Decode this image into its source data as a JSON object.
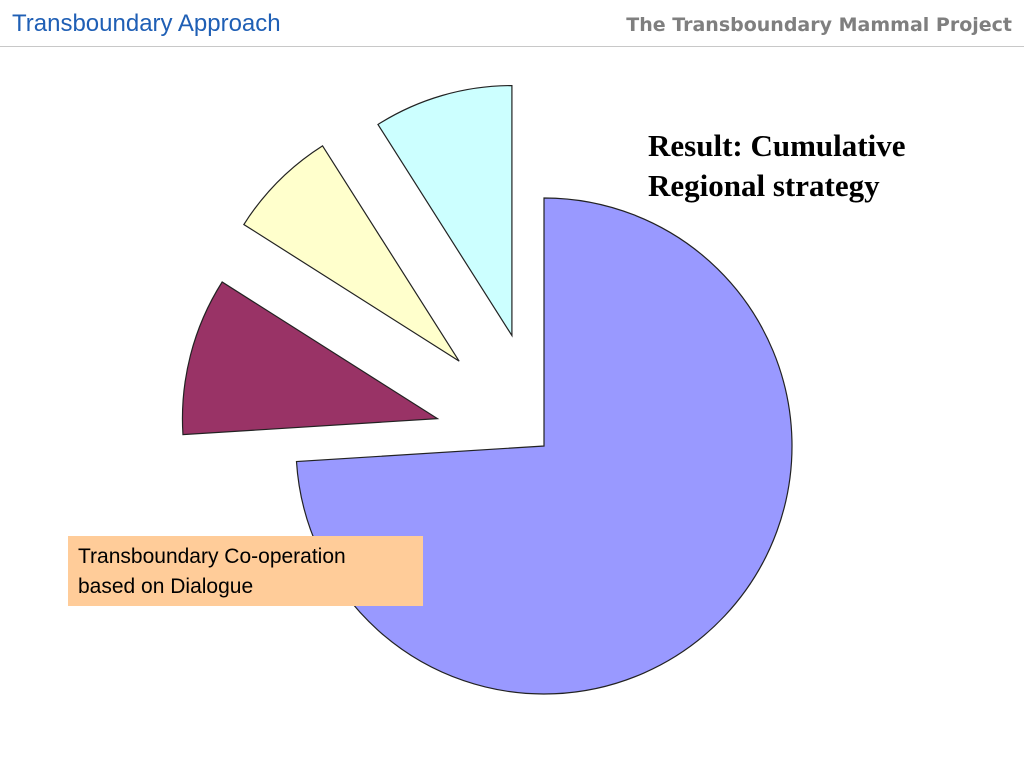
{
  "header": {
    "title": "Transboundary Approach",
    "project": "The Transboundary Mammal Project"
  },
  "result": {
    "line1": "Result: Cumulative",
    "line2": "Regional strategy"
  },
  "callout": {
    "line1": "Transboundary Co-operation",
    "line2": "based on Dialogue"
  },
  "chart_data": {
    "type": "pie",
    "exploded": true,
    "slices": [
      {
        "value": 74,
        "color": "#9999ff"
      },
      {
        "value": 10,
        "color": "#993366"
      },
      {
        "value": 7,
        "color": "#ffffcc"
      },
      {
        "value": 9,
        "color": "#ccffff"
      }
    ]
  }
}
